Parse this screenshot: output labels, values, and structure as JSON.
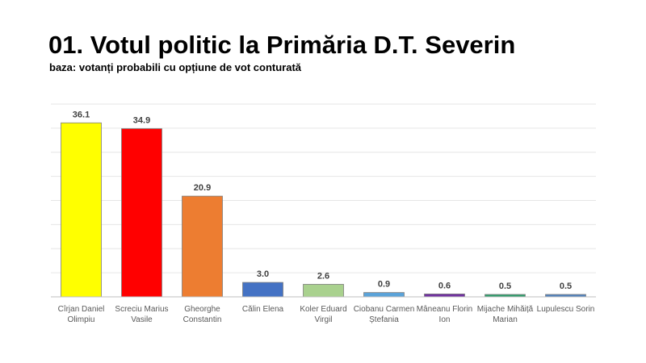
{
  "chart_data": {
    "type": "bar",
    "title": "01. Votul politic la Primăria D.T. Severin",
    "subtitle": "baza: votanți probabili cu opțiune de vot conturată",
    "xlabel": "",
    "ylabel": "",
    "ylim": [
      0,
      40
    ],
    "grid": true,
    "categories": [
      [
        "Cîrjan Daniel",
        "Olimpiu"
      ],
      [
        "Screciu Marius",
        "Vasile"
      ],
      [
        "Gheorghe",
        "Constantin"
      ],
      [
        "Călin Elena"
      ],
      [
        "Koler Eduard",
        "Virgil"
      ],
      [
        "Ciobanu Carmen",
        "Ștefania"
      ],
      [
        "Mâneanu Florin",
        "Ion"
      ],
      [
        "Mijache Mihăiță",
        "Marian"
      ],
      [
        "Lupulescu Sorin"
      ]
    ],
    "values": [
      36.1,
      34.9,
      20.9,
      3.0,
      2.6,
      0.9,
      0.6,
      0.5,
      0.5
    ],
    "labels": [
      "36.1",
      "34.9",
      "20.9",
      "3.0",
      "2.6",
      "0.9",
      "0.6",
      "0.5",
      "0.5"
    ],
    "colors": [
      "#FFFF00",
      "#FF0000",
      "#ED7D31",
      "#4472C4",
      "#A9D18E",
      "#5BA3D9",
      "#7030A0",
      "#2E9E6B",
      "#4F81BD"
    ]
  }
}
